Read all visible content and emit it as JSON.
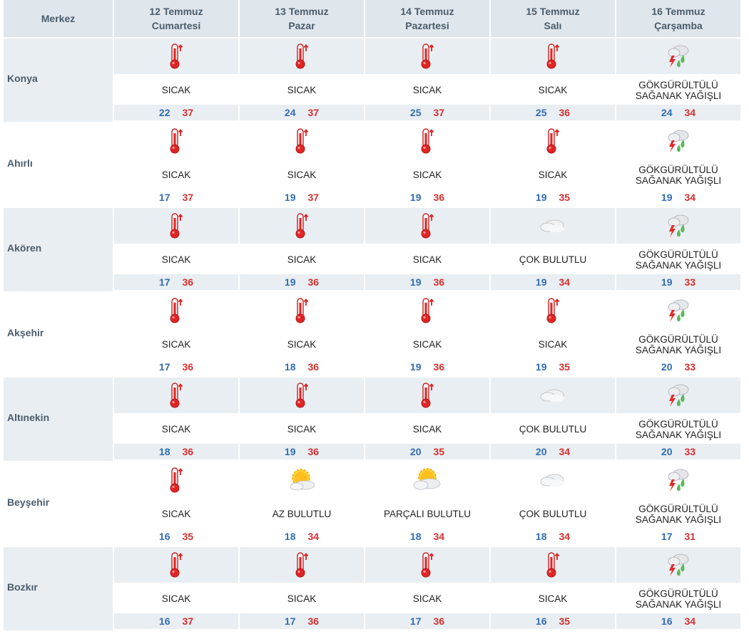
{
  "header": {
    "center_label": "Merkez",
    "days": [
      {
        "date": "12 Temmuz",
        "weekday": "Cumartesi"
      },
      {
        "date": "13 Temmuz",
        "weekday": "Pazar"
      },
      {
        "date": "14 Temmuz",
        "weekday": "Pazartesi"
      },
      {
        "date": "15 Temmuz",
        "weekday": "Salı"
      },
      {
        "date": "16 Temmuz",
        "weekday": "Çarşamba"
      }
    ]
  },
  "rows": [
    {
      "city": "Konya",
      "days": [
        {
          "icon": "thermometer-hot-icon",
          "cond": "SICAK",
          "min": "22",
          "max": "37"
        },
        {
          "icon": "thermometer-hot-icon",
          "cond": "SICAK",
          "min": "24",
          "max": "37"
        },
        {
          "icon": "thermometer-hot-icon",
          "cond": "SICAK",
          "min": "25",
          "max": "37"
        },
        {
          "icon": "thermometer-hot-icon",
          "cond": "SICAK",
          "min": "25",
          "max": "36"
        },
        {
          "icon": "thunderstorm-rain-icon",
          "cond": "GÖKGÜRÜLTÜLÜ\nSAĞANAK YAĞIŞLI",
          "min": "24",
          "max": "34"
        }
      ]
    },
    {
      "city": "Ahırlı",
      "days": [
        {
          "icon": "thermometer-hot-icon",
          "cond": "SICAK",
          "min": "17",
          "max": "37"
        },
        {
          "icon": "thermometer-hot-icon",
          "cond": "SICAK",
          "min": "19",
          "max": "37"
        },
        {
          "icon": "thermometer-hot-icon",
          "cond": "SICAK",
          "min": "19",
          "max": "36"
        },
        {
          "icon": "thermometer-hot-icon",
          "cond": "SICAK",
          "min": "19",
          "max": "35"
        },
        {
          "icon": "thunderstorm-rain-icon",
          "cond": "GÖKGÜRÜLTÜLÜ\nSAĞANAK YAĞIŞLI",
          "min": "19",
          "max": "34"
        }
      ]
    },
    {
      "city": "Akören",
      "days": [
        {
          "icon": "thermometer-hot-icon",
          "cond": "SICAK",
          "min": "17",
          "max": "36"
        },
        {
          "icon": "thermometer-hot-icon",
          "cond": "SICAK",
          "min": "19",
          "max": "36"
        },
        {
          "icon": "thermometer-hot-icon",
          "cond": "SICAK",
          "min": "19",
          "max": "36"
        },
        {
          "icon": "cloudy-icon",
          "cond": "ÇOK BULUTLU",
          "min": "19",
          "max": "34"
        },
        {
          "icon": "thunderstorm-rain-icon",
          "cond": "GÖKGÜRÜLTÜLÜ\nSAĞANAK YAĞIŞLI",
          "min": "19",
          "max": "33"
        }
      ]
    },
    {
      "city": "Akşehir",
      "days": [
        {
          "icon": "thermometer-hot-icon",
          "cond": "SICAK",
          "min": "17",
          "max": "36"
        },
        {
          "icon": "thermometer-hot-icon",
          "cond": "SICAK",
          "min": "18",
          "max": "36"
        },
        {
          "icon": "thermometer-hot-icon",
          "cond": "SICAK",
          "min": "19",
          "max": "36"
        },
        {
          "icon": "thermometer-hot-icon",
          "cond": "SICAK",
          "min": "19",
          "max": "35"
        },
        {
          "icon": "thunderstorm-rain-icon",
          "cond": "GÖKGÜRÜLTÜLÜ\nSAĞANAK YAĞIŞLI",
          "min": "20",
          "max": "33"
        }
      ]
    },
    {
      "city": "Altınekin",
      "days": [
        {
          "icon": "thermometer-hot-icon",
          "cond": "SICAK",
          "min": "18",
          "max": "36"
        },
        {
          "icon": "thermometer-hot-icon",
          "cond": "SICAK",
          "min": "19",
          "max": "36"
        },
        {
          "icon": "thermometer-hot-icon",
          "cond": "SICAK",
          "min": "20",
          "max": "35"
        },
        {
          "icon": "cloudy-icon",
          "cond": "ÇOK BULUTLU",
          "min": "20",
          "max": "34"
        },
        {
          "icon": "thunderstorm-rain-icon",
          "cond": "GÖKGÜRÜLTÜLÜ\nSAĞANAK YAĞIŞLI",
          "min": "20",
          "max": "33"
        }
      ]
    },
    {
      "city": "Beyşehir",
      "days": [
        {
          "icon": "thermometer-hot-icon",
          "cond": "SICAK",
          "min": "16",
          "max": "35"
        },
        {
          "icon": "partly-sunny-icon",
          "cond": "AZ BULUTLU",
          "min": "18",
          "max": "34"
        },
        {
          "icon": "mostly-cloudy-sun-icon",
          "cond": "PARÇALI BULUTLU",
          "min": "18",
          "max": "34"
        },
        {
          "icon": "cloudy-icon",
          "cond": "ÇOK BULUTLU",
          "min": "18",
          "max": "34"
        },
        {
          "icon": "thunderstorm-rain-icon",
          "cond": "GÖKGÜRÜLTÜLÜ\nSAĞANAK YAĞIŞLI",
          "min": "17",
          "max": "31"
        }
      ]
    },
    {
      "city": "Bozkır",
      "days": [
        {
          "icon": "thermometer-hot-icon",
          "cond": "SICAK",
          "min": "16",
          "max": "37"
        },
        {
          "icon": "thermometer-hot-icon",
          "cond": "SICAK",
          "min": "17",
          "max": "36"
        },
        {
          "icon": "thermometer-hot-icon",
          "cond": "SICAK",
          "min": "17",
          "max": "36"
        },
        {
          "icon": "thermometer-hot-icon",
          "cond": "SICAK",
          "min": "16",
          "max": "35"
        },
        {
          "icon": "thunderstorm-rain-icon",
          "cond": "GÖKGÜRÜLTÜLÜ\nSAĞANAK YAĞIŞLI",
          "min": "16",
          "max": "34"
        }
      ]
    }
  ]
}
